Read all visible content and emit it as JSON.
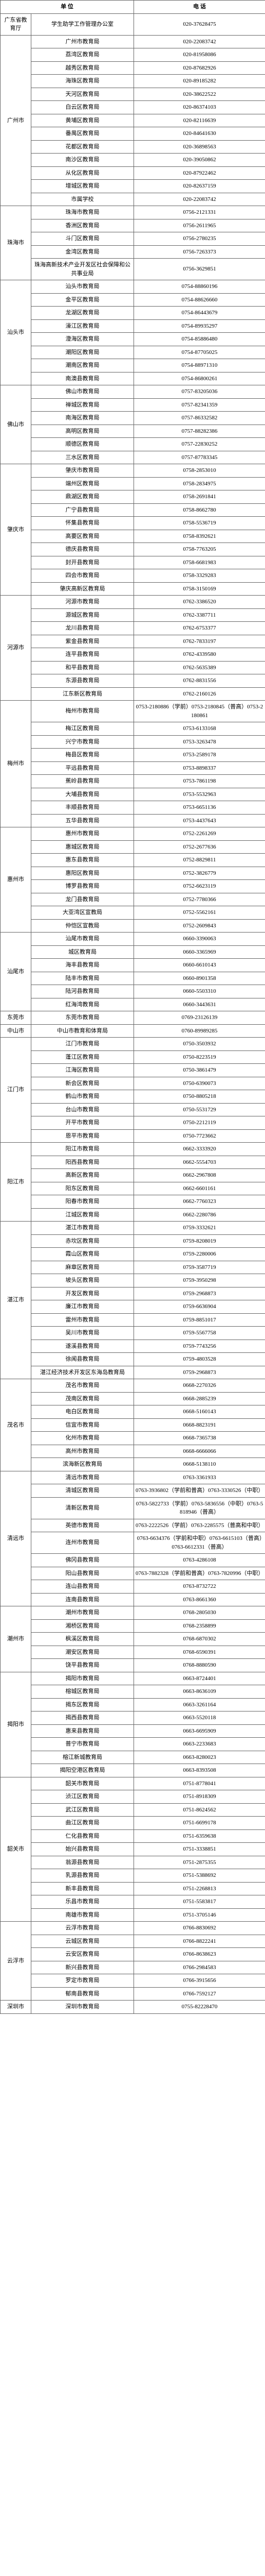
{
  "headers": {
    "unit": "单 位",
    "phone": "电 话"
  },
  "rows": [
    {
      "city": "广东省教育厅",
      "citySpan": 1,
      "unit": "学生助学工作管理办公室",
      "phone": "020-37628475"
    },
    {
      "city": "广州市",
      "citySpan": 13,
      "unit": "广州市教育局",
      "phone": "020-22083742"
    },
    {
      "unit": "荔湾区教育局",
      "phone": "020-81958086"
    },
    {
      "unit": "越秀区教育局",
      "phone": "020-87682926"
    },
    {
      "unit": "海珠区教育局",
      "phone": "020-89185282"
    },
    {
      "unit": "天河区教育局",
      "phone": "020-38622522"
    },
    {
      "unit": "白云区教育局",
      "phone": "020-86374103"
    },
    {
      "unit": "黄埔区教育局",
      "phone": "020-82116639"
    },
    {
      "unit": "番禺区教育局",
      "phone": "020-84641630"
    },
    {
      "unit": "花都区教育局",
      "phone": "020-36898563"
    },
    {
      "unit": "南沙区教育局",
      "phone": "020-39050862"
    },
    {
      "unit": "从化区教育局",
      "phone": "020-87922462"
    },
    {
      "unit": "增城区教育局",
      "phone": "020-82637159"
    },
    {
      "unit": "市属学校",
      "phone": "020-22083742"
    },
    {
      "city": "珠海市",
      "citySpan": 5,
      "unit": "珠海市教育局",
      "phone": "0756-2121331"
    },
    {
      "unit": "香洲区教育局",
      "phone": "0756-2611965"
    },
    {
      "unit": "斗门区教育局",
      "phone": "0756-2780235"
    },
    {
      "unit": "金湾区教育局",
      "phone": "0756-7263373"
    },
    {
      "unit": "珠海高新技术产业开发区社会保障和公共事业局",
      "phone": "0756-3629851"
    },
    {
      "city": "汕头市",
      "citySpan": 8,
      "unit": "汕头市教育局",
      "phone": "0754-88860196"
    },
    {
      "unit": "金平区教育局",
      "phone": "0754-88626660"
    },
    {
      "unit": "龙湖区教育局",
      "phone": "0754-86443679"
    },
    {
      "unit": "濠江区教育局",
      "phone": "0754-89935297"
    },
    {
      "unit": "澄海区教育局",
      "phone": "0754-85886480"
    },
    {
      "unit": "潮阳区教育局",
      "phone": "0754-87705025"
    },
    {
      "unit": "潮南区教育局",
      "phone": "0754-88971310"
    },
    {
      "unit": "南澳县教育局",
      "phone": "0754-86800261"
    },
    {
      "city": "佛山市",
      "citySpan": 6,
      "unit": "佛山市教育局",
      "phone": "0757-83205036"
    },
    {
      "unit": "禅城区教育局",
      "phone": "0757-82341359"
    },
    {
      "unit": "南海区教育局",
      "phone": "0757-86332582"
    },
    {
      "unit": "高明区教育局",
      "phone": "0757-88282386"
    },
    {
      "unit": "顺德区教育局",
      "phone": "0757-22830252"
    },
    {
      "unit": "三水区教育局",
      "phone": "0757-87783345"
    },
    {
      "city": "肇庆市",
      "citySpan": 10,
      "unit": "肇庆市教育局",
      "phone": "0758-2853010"
    },
    {
      "unit": "端州区教育局",
      "phone": "0758-2834975"
    },
    {
      "unit": "鼎湖区教育局",
      "phone": "0758-2691841"
    },
    {
      "unit": "广宁县教育局",
      "phone": "0758-8662780"
    },
    {
      "unit": "怀集县教育局",
      "phone": "0758-5536719"
    },
    {
      "unit": "高要区教育局",
      "phone": "0758-8392621"
    },
    {
      "unit": "德庆县教育局",
      "phone": "0758-7763205"
    },
    {
      "unit": "封开县教育局",
      "phone": "0758-6681983"
    },
    {
      "unit": "四会市教育局",
      "phone": "0758-3329283"
    },
    {
      "unit": "肇庆高新区教育局",
      "phone": "0758-3150169"
    },
    {
      "city": "河源市",
      "citySpan": 8,
      "unit": "河源市教育局",
      "phone": "0762-3386520"
    },
    {
      "unit": "源城区教育局",
      "phone": "0762-3387711"
    },
    {
      "unit": "龙川县教育局",
      "phone": "0762-6753377"
    },
    {
      "unit": "紫金县教育局",
      "phone": "0762-7833197"
    },
    {
      "unit": "连平县教育局",
      "phone": "0762-4339580"
    },
    {
      "unit": "和平县教育局",
      "phone": "0762-5635389"
    },
    {
      "unit": "东源县教育局",
      "phone": "0762-8831556"
    },
    {
      "unit": "江东新区教育局",
      "phone": "0762-2160126"
    },
    {
      "city": "梅州市",
      "citySpan": 9,
      "unit": "梅州市教育局",
      "phone": "0753-2180886（学前）0753-2180845（普高）0753-2180861"
    },
    {
      "unit": "梅江区教育局",
      "phone": "0753-6133168"
    },
    {
      "unit": "兴宁市教育局",
      "phone": "0753-3263478"
    },
    {
      "unit": "梅县区教育局",
      "phone": "0753-2589178"
    },
    {
      "unit": "平远县教育局",
      "phone": "0753-8898337"
    },
    {
      "unit": "蕉岭县教育局",
      "phone": "0753-7861198"
    },
    {
      "unit": "大埔县教育局",
      "phone": "0753-5532963"
    },
    {
      "unit": "丰顺县教育局",
      "phone": "0753-6651136"
    },
    {
      "unit": "五华县教育局",
      "phone": "0753-4437643"
    },
    {
      "city": "惠州市",
      "citySpan": 8,
      "unit": "惠州市教育局",
      "phone": "0752-2261269"
    },
    {
      "unit": "惠城区教育局",
      "phone": "0752-2677636"
    },
    {
      "unit": "惠东县教育局",
      "phone": "0752-8829811"
    },
    {
      "unit": "惠阳区教育局",
      "phone": "0752-3826779"
    },
    {
      "unit": "博罗县教育局",
      "phone": "0752-6623119"
    },
    {
      "unit": "龙门县教育局",
      "phone": "0752-7780366"
    },
    {
      "unit": "大亚湾区宣教局",
      "phone": "0752-5562161"
    },
    {
      "unit": "仲恺区宣教局",
      "phone": "0752-2609843"
    },
    {
      "city": "汕尾市",
      "citySpan": 6,
      "unit": "汕尾市教育局",
      "phone": "0660-3390063"
    },
    {
      "unit": "城区教育局",
      "phone": "0660-3365969"
    },
    {
      "unit": "海丰县教育局",
      "phone": "0660-6610143"
    },
    {
      "unit": "陆丰市教育局",
      "phone": "0660-8901358"
    },
    {
      "unit": "陆河县教育局",
      "phone": "0660-5503310"
    },
    {
      "unit": "红海湾教育局",
      "phone": "0660-3443631"
    },
    {
      "city": "东莞市",
      "citySpan": 1,
      "unit": "东莞市教育局",
      "phone": "0769-23126139"
    },
    {
      "city": "中山市",
      "citySpan": 1,
      "unit": "中山市教育和体育局",
      "phone": "0760-89989285"
    },
    {
      "city": "江门市",
      "citySpan": 8,
      "unit": "江门市教育局",
      "phone": "0750-3503932"
    },
    {
      "unit": "蓬江区教育局",
      "phone": "0750-8223519"
    },
    {
      "unit": "江海区教育局",
      "phone": "0750-3861479"
    },
    {
      "unit": "新会区教育局",
      "phone": "0750-6390073"
    },
    {
      "unit": "鹤山市教育局",
      "phone": "0750-8805218"
    },
    {
      "unit": "台山市教育局",
      "phone": "0750-5531729"
    },
    {
      "unit": "开平市教育局",
      "phone": "0750-2212119"
    },
    {
      "unit": "恩平市教育局",
      "phone": "0750-7723662"
    },
    {
      "city": "阳江市",
      "citySpan": 6,
      "unit": "阳江市教育局",
      "phone": "0662-3333920"
    },
    {
      "unit": "阳西县教育局",
      "phone": "0662-5554703"
    },
    {
      "unit": "高新区教育局",
      "phone": "0662-2967808"
    },
    {
      "unit": "阳东区教育局",
      "phone": "0662-6601161"
    },
    {
      "unit": "阳春市教育局",
      "phone": "0662-7760323"
    },
    {
      "unit": "江城区教育局",
      "phone": "0662-2280786"
    },
    {
      "city": "湛江市",
      "citySpan": 12,
      "unit": "湛江市教育局",
      "phone": "0759-3332621"
    },
    {
      "unit": "赤坎区教育局",
      "phone": "0759-8208019"
    },
    {
      "unit": "霞山区教育局",
      "phone": "0759-2280006"
    },
    {
      "unit": "麻章区教育局",
      "phone": "0759-3587719"
    },
    {
      "unit": "坡头区教育局",
      "phone": "0759-3950298"
    },
    {
      "unit": "开发区教育局",
      "phone": "0759-2968873"
    },
    {
      "unit": "廉江市教育局",
      "phone": "0759-6636904"
    },
    {
      "unit": "雷州市教育局",
      "phone": "0759-8851017"
    },
    {
      "unit": "吴川市教育局",
      "phone": "0759-5567758"
    },
    {
      "unit": "遂溪县教育局",
      "phone": "0759-7743256"
    },
    {
      "unit": "徐闻县教育局",
      "phone": "0759-4803528"
    },
    {
      "unit": "湛江经济技术开发区东海岛教育局",
      "phone": "0759-2968873"
    },
    {
      "city": "茂名市",
      "citySpan": 7,
      "unit": "茂名市教育局",
      "phone": "0668-2270326"
    },
    {
      "unit": "茂南区教育局",
      "phone": "0668-2885239"
    },
    {
      "unit": "电白区教育局",
      "phone": "0668-5160143"
    },
    {
      "unit": "信宜市教育局",
      "phone": "0668-8823191"
    },
    {
      "unit": "化州市教育局",
      "phone": "0668-7365738"
    },
    {
      "unit": "高州市教育局",
      "phone": "0668-6666066"
    },
    {
      "unit": "滨海新区教育局",
      "phone": "0668-5138110"
    },
    {
      "city": "清远市",
      "citySpan": 9,
      "unit": "清远市教育局",
      "phone": "0763-3361933"
    },
    {
      "unit": "清城区教育局",
      "phone": "0763-3936802（学前和普高）0763-3330526（中职）"
    },
    {
      "unit": "清新区教育局",
      "phone": "0763-5822733（学前）0763-5836556（中职）0763-5818946（普高）"
    },
    {
      "unit": "英德市教育局",
      "phone": "0763-2222526（学前）0763-2285575（普高和中职）"
    },
    {
      "unit": "连州市教育局",
      "phone": "0763-6634376（学前和中职）0763-6615103（普高）0763-6612331（普高）"
    },
    {
      "unit": "佛冈县教育局",
      "phone": "0763-4286108"
    },
    {
      "unit": "阳山县教育局",
      "phone": "0763-7882328（学前和普高）0763-7820996（中职）"
    },
    {
      "unit": "连山县教育局",
      "phone": "0763-8732722"
    },
    {
      "unit": "连南县教育局",
      "phone": "0763-8661360"
    },
    {
      "city": "潮州市",
      "citySpan": 5,
      "unit": "潮州市教育局",
      "phone": "0768-2805030"
    },
    {
      "unit": "湘桥区教育局",
      "phone": "0768-2358899"
    },
    {
      "unit": "枫溪区教育局",
      "phone": "0768-6870302"
    },
    {
      "unit": "潮安区教育局",
      "phone": "0768-6590391"
    },
    {
      "unit": "饶平县教育局",
      "phone": "0768-8880590"
    },
    {
      "city": "揭阳市",
      "citySpan": 8,
      "unit": "揭阳市教育局",
      "phone": "0663-8724401"
    },
    {
      "unit": "榕城区教育局",
      "phone": "0663-8636109"
    },
    {
      "unit": "揭东区教育局",
      "phone": "0663-3261164"
    },
    {
      "unit": "揭西县教育局",
      "phone": "0663-5520118"
    },
    {
      "unit": "惠来县教育局",
      "phone": "0663-6695909"
    },
    {
      "unit": "普宁市教育局",
      "phone": "0663-2233683"
    },
    {
      "unit": "榕江新城教育局",
      "phone": "0663-8280023"
    },
    {
      "unit": "揭阳空港区教育局",
      "phone": "0663-8393508"
    },
    {
      "city": "韶关市",
      "citySpan": 11,
      "unit": "韶关市教育局",
      "phone": "0751-8778041"
    },
    {
      "unit": "浈江区教育局",
      "phone": "0751-8918309"
    },
    {
      "unit": "武江区教育局",
      "phone": "0751-8624562"
    },
    {
      "unit": "曲江区教育局",
      "phone": "0751-6699178"
    },
    {
      "unit": "仁化县教育局",
      "phone": "0751-6359638"
    },
    {
      "unit": "始兴县教育局",
      "phone": "0751-3338851"
    },
    {
      "unit": "翁源县教育局",
      "phone": "0751-2875355"
    },
    {
      "unit": "乳源县教育局",
      "phone": "0751-5388692"
    },
    {
      "unit": "新丰县教育局",
      "phone": "0751-2268813"
    },
    {
      "unit": "乐昌市教育局",
      "phone": "0751-5583817"
    },
    {
      "unit": "南雄市教育局",
      "phone": "0751-3705146"
    },
    {
      "city": "云浮市",
      "citySpan": 6,
      "unit": "云浮市教育局",
      "phone": "0766-8830692"
    },
    {
      "unit": "云城区教育局",
      "phone": "0766-8822241"
    },
    {
      "unit": "云安区教育局",
      "phone": "0766-8638623"
    },
    {
      "unit": "新兴县教育局",
      "phone": "0766-2984583"
    },
    {
      "unit": "罗定市教育局",
      "phone": "0766-3915656"
    },
    {
      "unit": "郁南县教育局",
      "phone": "0766-7592127"
    },
    {
      "city": "深圳市",
      "citySpan": 1,
      "unit": "深圳市教育局",
      "phone": "0755-82228470"
    }
  ]
}
